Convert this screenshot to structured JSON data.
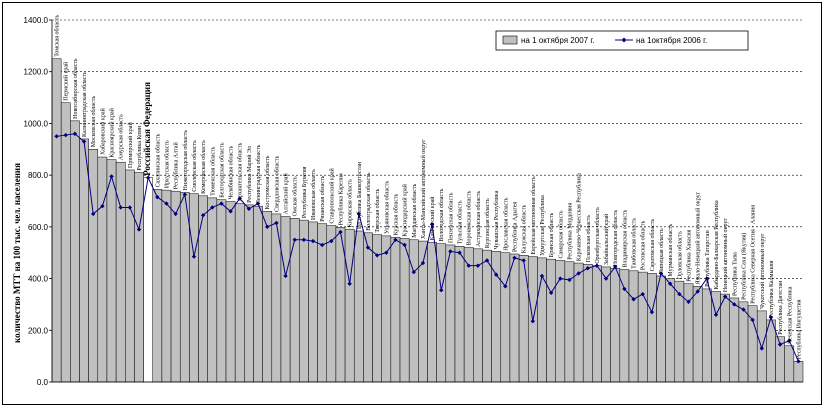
{
  "chart_data": {
    "type": "bar",
    "ylabel": "количество МТТ на 100 тыс. чел. населения",
    "ylim": [
      0,
      1400
    ],
    "yticks": [
      "0.0",
      "200.0",
      "400.0",
      "600.0",
      "800.0",
      "1000.0",
      "1200.0",
      "1400.0"
    ],
    "ytick_values": [
      0,
      200,
      400,
      600,
      800,
      1000,
      1200,
      1400
    ],
    "grid": "horizontal-dashed",
    "legend_position": "top-right",
    "highlight_index": 10,
    "categories": [
      "Томская область",
      "Пермский край",
      "Новосибирская область",
      "Калининградская область",
      "Московская область",
      "Хабаровский край",
      "Красноярский край",
      "Амурская область",
      "Приморский край",
      "Республика Коми",
      "Российская Федерация",
      "Сахалинская область",
      "Иркутская область",
      "Республика Алтай",
      "Нижегородская область",
      "Смоленская область",
      "Кемеровская область",
      "Тюменская область",
      "Белгородская область",
      "Челябинская область",
      "Архангельская область",
      "Республика Марий Эл",
      "Ленинградская область",
      "Костромская область",
      "Свердловская область",
      "Алтайский край",
      "Омская область",
      "Республика Бурятия",
      "Ивановская область",
      "Рязанская область",
      "Ставропольский край",
      "Республика Карелия",
      "Кировская область",
      "Республика Башкортостан",
      "Волгоградская область",
      "Тверская область",
      "Ульяновская область",
      "Курская область",
      "Краснодарский край",
      "Магаданская область",
      "Ханты-Мансийский автономный округ",
      "Камчатский край",
      "Вологодская область",
      "Пензенская область",
      "Тульская область",
      "Воронежская область",
      "Астраханская область",
      "Курганская область",
      "Чувашская Республика",
      "Ярославская область",
      "Республика Адыгея",
      "Калужская область",
      "Еврейская автономная область",
      "Удмуртская Республика",
      "Брянская область",
      "Самарская область",
      "Республика Мордовия",
      "Карачаево-Черкесская Республика",
      "Псковская область",
      "Оренбургская область",
      "Забайкальский край",
      "Новгородская область",
      "Владимирская область",
      "Тамбовская область",
      "Ростовская область",
      "Саратовская область",
      "Липецкая область",
      "Мурманская область",
      "Орловская область",
      "Республика Хакасия",
      "Ямало-Ненецкий автономный округ",
      "Республика Татарстан",
      "Кабардино-Балкарская Республика",
      "Ненецкий автономный округ",
      "Республика Тыва",
      "Республика Саха (Якутия)",
      "Республика Северная Осетия - Алания",
      "Чукотский автономный округ",
      "Республика Калмыкия",
      "Республика Дагестан",
      "Чеченская Республика",
      "Республика Ингушетия"
    ],
    "series": [
      {
        "name": "на 1 октября 2007 г.",
        "type": "bar",
        "color": "#c0c0c0",
        "values": [
          1250,
          1080,
          1010,
          940,
          900,
          870,
          860,
          850,
          820,
          810,
          790,
          745,
          742,
          738,
          733,
          728,
          720,
          712,
          705,
          698,
          690,
          685,
          680,
          660,
          650,
          640,
          633,
          626,
          619,
          612,
          605,
          598,
          591,
          584,
          577,
          570,
          565,
          560,
          555,
          550,
          545,
          540,
          535,
          530,
          525,
          520,
          515,
          510,
          505,
          500,
          495,
          490,
          485,
          480,
          475,
          470,
          465,
          460,
          455,
          450,
          445,
          440,
          435,
          430,
          425,
          420,
          410,
          400,
          390,
          380,
          370,
          360,
          350,
          340,
          325,
          310,
          295,
          275,
          240,
          175,
          140,
          80
        ]
      },
      {
        "name": "на 1октября 2006 г.",
        "type": "line",
        "color": "#000080",
        "values": [
          950,
          955,
          960,
          930,
          650,
          680,
          795,
          675,
          675,
          590,
          790,
          715,
          690,
          650,
          725,
          485,
          645,
          675,
          690,
          660,
          710,
          670,
          690,
          600,
          615,
          410,
          550,
          550,
          545,
          530,
          545,
          580,
          380,
          650,
          520,
          490,
          500,
          550,
          530,
          425,
          460,
          610,
          355,
          505,
          500,
          450,
          450,
          470,
          415,
          370,
          480,
          470,
          235,
          410,
          345,
          400,
          395,
          420,
          440,
          450,
          400,
          445,
          360,
          320,
          340,
          270,
          420,
          380,
          340,
          310,
          350,
          400,
          260,
          330,
          300,
          280,
          240,
          130,
          250,
          145,
          160,
          80
        ]
      }
    ]
  }
}
